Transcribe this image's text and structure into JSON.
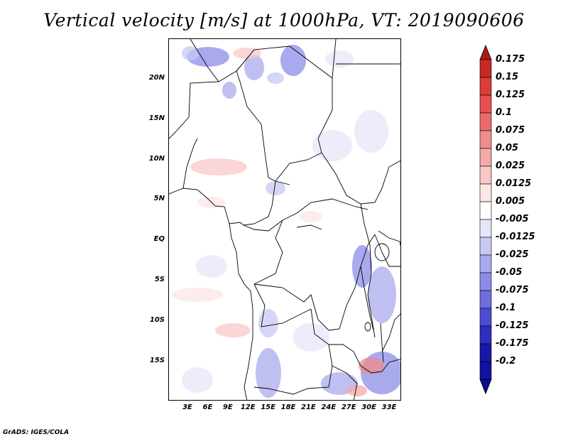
{
  "title": "Vertical velocity [m/s] at 1000hPa, VT: 2019090606",
  "footer": "GrADS: IGES/COLA",
  "lat_labels": [
    "20N",
    "15N",
    "10N",
    "5N",
    "EQ",
    "5S",
    "10S",
    "15S"
  ],
  "lon_labels": [
    "3E",
    "6E",
    "9E",
    "12E",
    "15E",
    "18E",
    "21E",
    "24E",
    "27E",
    "30E",
    "33E"
  ],
  "colorbar": {
    "labels": [
      "0.175",
      "0.15",
      "0.125",
      "0.1",
      "0.075",
      "0.05",
      "0.025",
      "0.0125",
      "0.005",
      "-0.005",
      "-0.0125",
      "-0.025",
      "-0.05",
      "-0.075",
      "-0.1",
      "-0.125",
      "-0.175",
      "-0.2"
    ],
    "colors": [
      "#b01818",
      "#c82828",
      "#dc3c3c",
      "#e65050",
      "#ea6a6a",
      "#f08c8c",
      "#f4aaaa",
      "#f8c8c8",
      "#fce6e6",
      "#ffffff",
      "#e6e6fa",
      "#c8c8f4",
      "#aaaaee",
      "#8c8ce8",
      "#6e6edc",
      "#4c4cd0",
      "#2e2ec0",
      "#1818a8",
      "#1212a0",
      "#0c0c8c"
    ]
  }
}
